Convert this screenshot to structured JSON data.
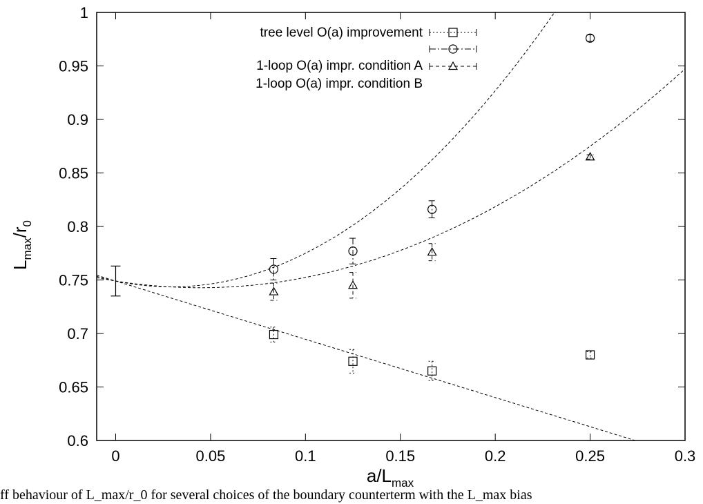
{
  "chart_data": {
    "type": "scatter",
    "title": "",
    "xlabel": {
      "main": "a/L",
      "sub": "max"
    },
    "ylabel": {
      "main": "L",
      "sub": "max",
      "mid": "/r",
      "sub2": "0"
    },
    "xlim": [
      -0.01,
      0.3
    ],
    "ylim": [
      0.6,
      1.0
    ],
    "xticks": [
      0,
      0.05,
      0.1,
      0.15,
      0.2,
      0.25,
      0.3
    ],
    "xtick_labels": [
      "0",
      "0.05",
      "0.1",
      "0.15",
      "0.2",
      "0.25",
      "0.3"
    ],
    "yticks": [
      0.6,
      0.65,
      0.7,
      0.75,
      0.8,
      0.85,
      0.9,
      0.95,
      1.0
    ],
    "ytick_labels": [
      "0.6",
      "0.65",
      "0.7",
      "0.75",
      "0.8",
      "0.85",
      "0.9",
      "0.95",
      "1"
    ],
    "grid": false,
    "legend_position": "top-center",
    "continuum_point": {
      "x": 0,
      "y": 0.749,
      "err": 0.014
    },
    "series": [
      {
        "name": "tree level O(a) improvement",
        "marker": "square",
        "x": [
          0.0833,
          0.125,
          0.1667,
          0.25
        ],
        "y": [
          0.699,
          0.674,
          0.665,
          0.68
        ],
        "err": [
          0.007,
          0.011,
          0.009,
          0.003
        ]
      },
      {
        "name": "1-loop O(a) impr. condition A",
        "marker": "circle",
        "x": [
          0.0833,
          0.125,
          0.1667,
          0.25
        ],
        "y": [
          0.76,
          0.777,
          0.816,
          0.976
        ],
        "err": [
          0.01,
          0.012,
          0.008,
          0.003
        ]
      },
      {
        "name": "1-loop O(a) impr. condition B",
        "marker": "triangle",
        "x": [
          0.0833,
          0.125,
          0.1667,
          0.25
        ],
        "y": [
          0.739,
          0.745,
          0.776,
          0.865
        ],
        "err": [
          0.008,
          0.012,
          0.008,
          0.002
        ]
      }
    ],
    "fits": [
      {
        "series": "tree level O(a) improvement",
        "form": "linear",
        "coeffs": [
          0.749,
          -0.5444
        ]
      },
      {
        "series": "1-loop O(a) impr. condition A",
        "form": "quadratic",
        "coeffs": [
          0.749,
          -0.37,
          6.296
        ]
      },
      {
        "series": "1-loop O(a) impr. condition B",
        "form": "quadratic",
        "coeffs": [
          0.749,
          -0.28,
          3.136
        ]
      }
    ]
  },
  "caption": "ff behaviour of L_max/r_0 for several choices of the boundary counterterm with the L_max bias"
}
